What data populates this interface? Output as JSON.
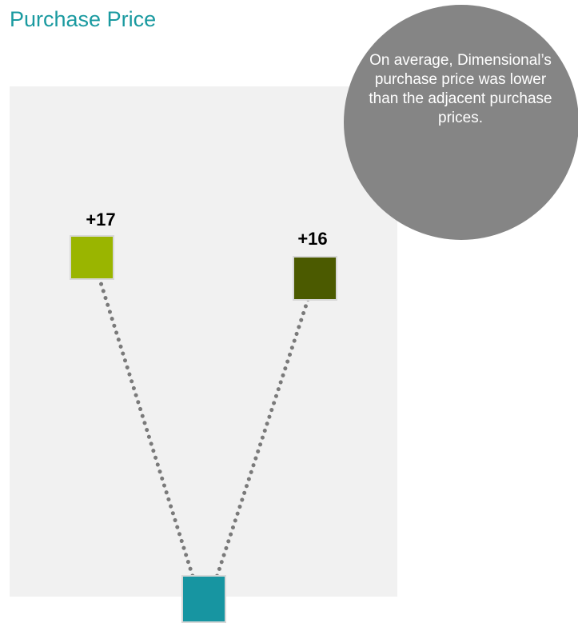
{
  "title": "Purchase Price",
  "callout": {
    "text": "On average, Dimensional’s purchase price was lower than the adjacent purchase prices."
  },
  "colors": {
    "title": "#1a9aa0",
    "panel": "#f1f1f1",
    "callout": "#858585",
    "dots": "#7a7a7a",
    "marker_border": "#d8d8d8",
    "label_text": "#000000"
  },
  "chart_data": {
    "type": "scatter",
    "title": "Purchase Price",
    "points": [
      {
        "id": "left",
        "label": "+17",
        "value": 17,
        "color": "#9ab500"
      },
      {
        "id": "right",
        "label": "+16",
        "value": 16,
        "color": "#4b5a00"
      },
      {
        "id": "center",
        "label": "",
        "value": 0,
        "color": "#1795a1"
      }
    ],
    "connectors": [
      {
        "from": "center",
        "to": "left",
        "style": "dotted"
      },
      {
        "from": "center",
        "to": "right",
        "style": "dotted"
      }
    ],
    "grid": false,
    "legend": "none"
  }
}
